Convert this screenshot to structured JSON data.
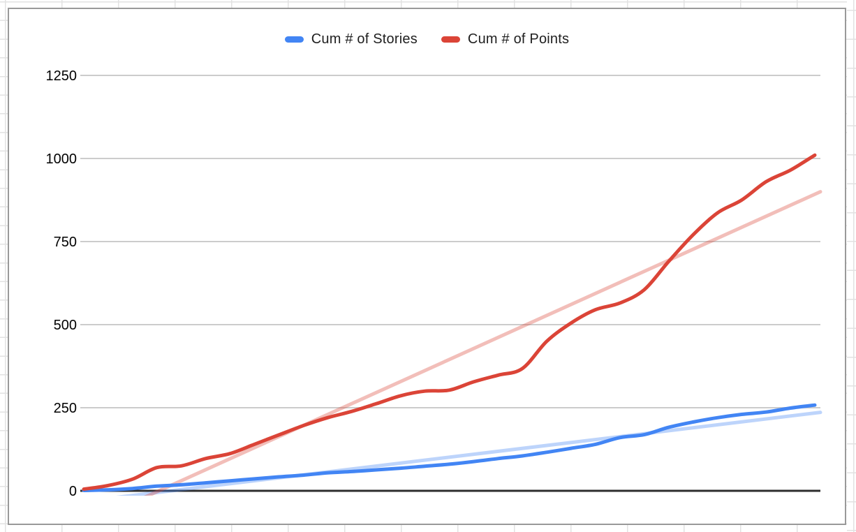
{
  "legend": {
    "items": [
      {
        "label": "Cum # of Stories",
        "color": "#4285F4"
      },
      {
        "label": "Cum # of Points",
        "color": "#DB4437"
      }
    ]
  },
  "axes": {
    "y_tick_labels": [
      "0",
      "250",
      "500",
      "750",
      "1000",
      "1250"
    ],
    "x_tick_labels_visible": false
  },
  "colors": {
    "grid": "#cccccc",
    "axis_zero_line": "#2e2e2e",
    "tick_label": "#000000",
    "legend_text": "#1f1f1f",
    "chart_border": "#999999",
    "sheet_gridline": "#e2e2e2"
  },
  "chart_data": {
    "type": "line",
    "title": "",
    "grid": "horizontal",
    "legend_position": "top",
    "x_axis": {
      "points": 31,
      "tick_labels_visible": false
    },
    "y_axis": {
      "ticks": [
        0,
        250,
        500,
        750,
        1000,
        1250
      ],
      "range_top": 1345
    },
    "series": [
      {
        "name": "Cum # of Stories",
        "color": "#4285F4",
        "values": [
          1,
          3,
          7,
          14,
          18,
          24,
          30,
          36,
          42,
          47,
          54,
          58,
          63,
          68,
          74,
          80,
          88,
          97,
          105,
          116,
          128,
          140,
          160,
          169,
          191,
          207,
          220,
          230,
          237,
          249,
          258
        ]
      },
      {
        "name": "Cum # of Points",
        "color": "#DB4437",
        "values": [
          5,
          16,
          35,
          70,
          75,
          97,
          112,
          140,
          168,
          196,
          220,
          239,
          262,
          286,
          300,
          303,
          328,
          348,
          368,
          450,
          505,
          545,
          565,
          605,
          690,
          770,
          836,
          875,
          930,
          965,
          1010
        ]
      }
    ],
    "trendlines": [
      {
        "series": "Cum # of Stories",
        "color": "rgba(66,133,244,0.35)",
        "edge_values": [
          -33,
          236
        ]
      },
      {
        "series": "Cum # of Points",
        "color": "rgba(219,68,55,0.35)",
        "edge_values": [
          -107,
          900
        ]
      }
    ]
  }
}
